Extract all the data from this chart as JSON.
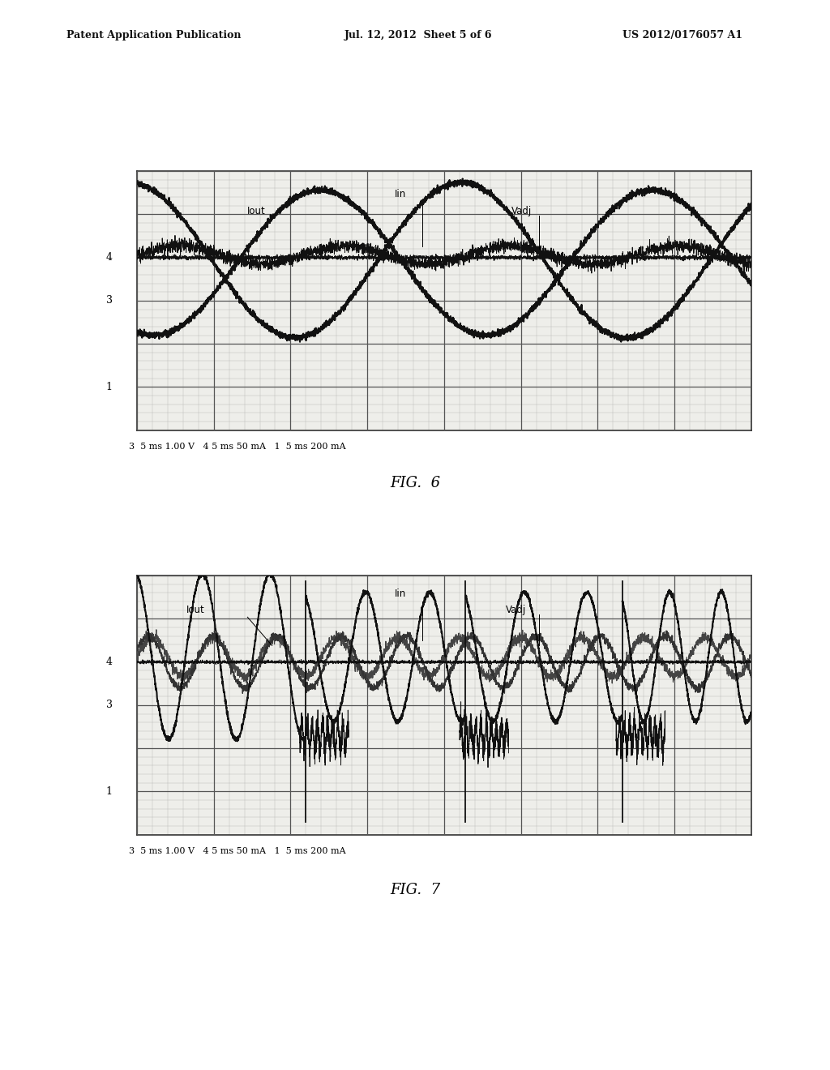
{
  "title_line1": "Patent Application Publication",
  "title_line2": "Jul. 12, 2012  Sheet 5 of 6",
  "title_line3": "US 2012/0176057 A1",
  "fig6_caption": "FIG.  6",
  "fig7_caption": "FIG.  7",
  "fig6_bottom_text": "3  5 ms 1.00 V   4 5 ms 50 mA   1  5 ms 200 mA",
  "fig7_bottom_text": "3  5 ms 1.00 V   4 5 ms 50 mA   1  5 ms 200 mA",
  "bg_color": "#ffffff",
  "grid_color_major": "#555555",
  "grid_color_minor": "#aaaaaa",
  "waveform_dark": "#111111",
  "label_Iout": "Iout",
  "label_Iin": "Iin",
  "label_Vadj": "Vadj",
  "nx": 8,
  "ny": 6
}
